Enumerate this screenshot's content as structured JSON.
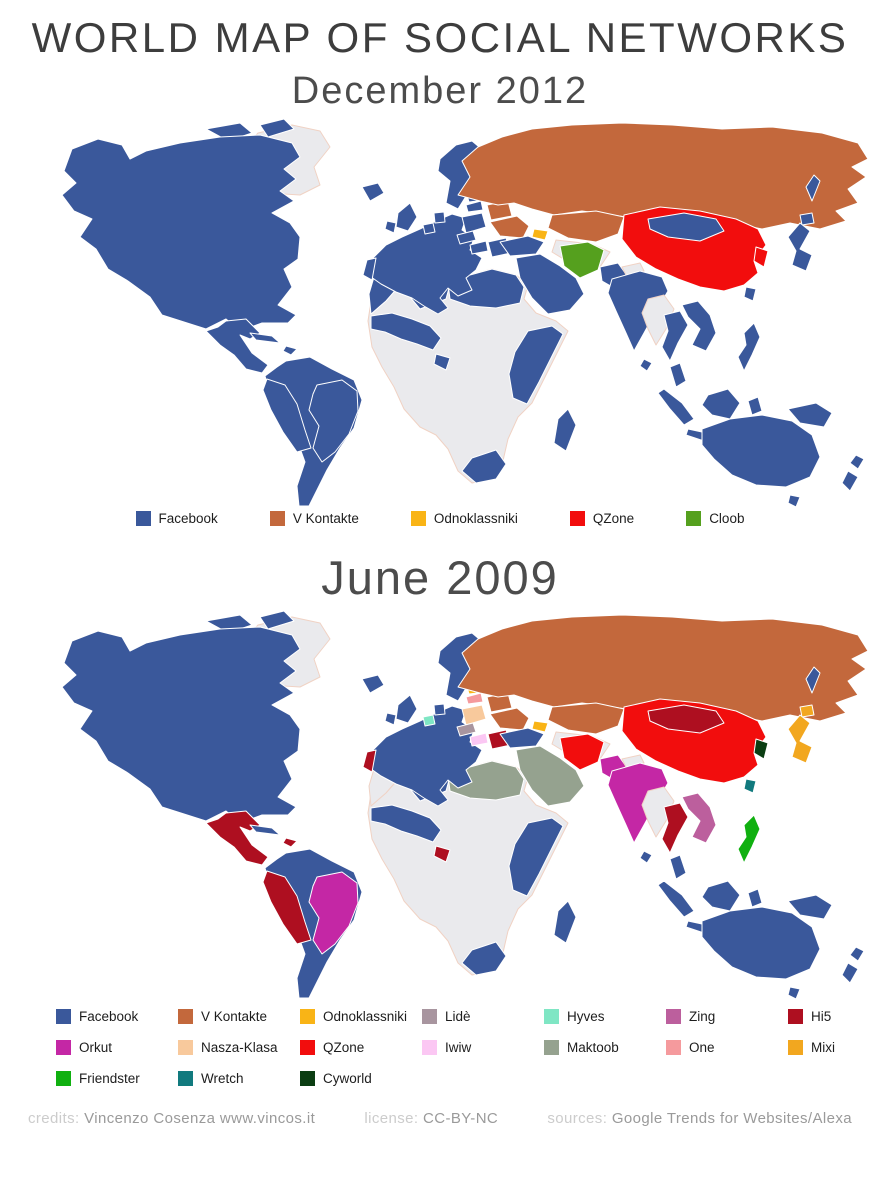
{
  "title": "WORLD MAP OF SOCIAL NETWORKS",
  "palette": {
    "facebook": "#3a589b",
    "vkontakte": "#c3683c",
    "odnoklassniki": "#f9b416",
    "qzone": "#f20d0d",
    "cloob": "#55a01e",
    "lide": "#a8959f",
    "hyves": "#7fe6c4",
    "zing": "#bc5f9d",
    "hi5": "#ae0f20",
    "orkut": "#c427a5",
    "nasza_klasa": "#f8c99c",
    "iwiw": "#fbc7f3",
    "maktoob": "#95a28f",
    "one": "#f59a9d",
    "mixi": "#f2a71f",
    "friendster": "#10b010",
    "wretch": "#117a7e",
    "cyworld": "#0b3d12",
    "nodata": "#eaeaed",
    "ocean": "#ffffff"
  },
  "maps": [
    {
      "subtitle": "December 2012",
      "legend": [
        {
          "label": "Facebook",
          "color_key": "facebook"
        },
        {
          "label": "V Kontakte",
          "color_key": "vkontakte"
        },
        {
          "label": "Odnoklassniki",
          "color_key": "odnoklassniki"
        },
        {
          "label": "QZone",
          "color_key": "qzone"
        },
        {
          "label": "Cloob",
          "color_key": "cloob"
        }
      ],
      "regions": {
        "greenland": "nodata",
        "arctic1": "facebook",
        "arctic2": "facebook",
        "northamerica": "facebook",
        "mexico_ca": "facebook",
        "cuba": "facebook",
        "hispaniola": "facebook",
        "guyanas": "nodata",
        "southamerica": "facebook",
        "brazil": "facebook",
        "andes": "facebook",
        "africa_base": "nodata",
        "madagascar": "facebook",
        "maghreb": "facebook",
        "algeria": "facebook",
        "libya_egypt": "facebook",
        "africa_west": "facebook",
        "cameroon": "facebook",
        "africa_east": "facebook",
        "africa_south": "facebook",
        "europe": "facebook",
        "portugal": "facebook",
        "uk": "facebook",
        "ireland": "facebook",
        "iceland": "facebook",
        "scandinavia": "facebook",
        "finland": "facebook",
        "denmark": "facebook",
        "netherlands": "facebook",
        "poland": "facebook",
        "czech": "facebook",
        "hungary": "facebook",
        "romania": "facebook",
        "lithuania": "facebook",
        "latvia": "facebook",
        "estonia": "facebook",
        "belarus": "vkontakte",
        "ukraine": "vkontakte",
        "russia": "vkontakte",
        "kazakhstan": "vkontakte",
        "centralasia": "nodata",
        "caucasus": "odnoklassniki",
        "turkey": "facebook",
        "middleeast": "facebook",
        "iran": "cloob",
        "pakistan": "facebook",
        "india": "facebook",
        "srilanka": "facebook",
        "china": "qzone",
        "mongolia": "facebook",
        "korea": "qzone",
        "japan": "facebook",
        "hokkaido": "facebook",
        "sakhalin": "facebook",
        "nepal": "nodata",
        "myanmar": "nodata",
        "thailand": "facebook",
        "indochina": "facebook",
        "malaypenin": "facebook",
        "sumatra": "facebook",
        "java": "facebook",
        "borneo": "facebook",
        "sulawesi": "facebook",
        "newguinea": "facebook",
        "philippines": "facebook",
        "taiwan": "facebook",
        "australia": "facebook",
        "tasmania": "facebook",
        "newzealand": "facebook",
        "nz_north": "facebook"
      }
    },
    {
      "subtitle": "June 2009",
      "legend": [
        {
          "label": "Facebook",
          "color_key": "facebook"
        },
        {
          "label": "V Kontakte",
          "color_key": "vkontakte"
        },
        {
          "label": "Odnoklassniki",
          "color_key": "odnoklassniki"
        },
        {
          "label": "Lidè",
          "color_key": "lide"
        },
        {
          "label": "Hyves",
          "color_key": "hyves"
        },
        {
          "label": "Zing",
          "color_key": "zing"
        },
        {
          "label": "Hi5",
          "color_key": "hi5"
        },
        {
          "label": "Orkut",
          "color_key": "orkut"
        },
        {
          "label": "Nasza-Klasa",
          "color_key": "nasza_klasa"
        },
        {
          "label": "QZone",
          "color_key": "qzone"
        },
        {
          "label": "Iwiw",
          "color_key": "iwiw"
        },
        {
          "label": "Maktoob",
          "color_key": "maktoob"
        },
        {
          "label": "One",
          "color_key": "one"
        },
        {
          "label": "Mixi",
          "color_key": "mixi"
        },
        {
          "label": "Friendster",
          "color_key": "friendster"
        },
        {
          "label": "Wretch",
          "color_key": "wretch"
        },
        {
          "label": "Cyworld",
          "color_key": "cyworld"
        }
      ],
      "regions": {
        "greenland": "nodata",
        "arctic1": "facebook",
        "arctic2": "facebook",
        "northamerica": "facebook",
        "mexico_ca": "hi5",
        "cuba": "facebook",
        "hispaniola": "hi5",
        "guyanas": "nodata",
        "southamerica": "facebook",
        "brazil": "orkut",
        "andes": "hi5",
        "africa_base": "nodata",
        "madagascar": "facebook",
        "maghreb": "nodata",
        "algeria": "facebook",
        "libya_egypt": "maktoob",
        "africa_west": "facebook",
        "cameroon": "hi5",
        "africa_east": "facebook",
        "africa_south": "facebook",
        "europe": "facebook",
        "portugal": "hi5",
        "uk": "facebook",
        "ireland": "facebook",
        "iceland": "facebook",
        "scandinavia": "facebook",
        "finland": "facebook",
        "denmark": "facebook",
        "netherlands": "hyves",
        "poland": "nasza_klasa",
        "czech": "lide",
        "hungary": "iwiw",
        "romania": "hi5",
        "lithuania": "one",
        "latvia": "odnoklassniki",
        "estonia": "orkut",
        "belarus": "vkontakte",
        "ukraine": "vkontakte",
        "russia": "vkontakte",
        "kazakhstan": "vkontakte",
        "centralasia": "nodata",
        "caucasus": "odnoklassniki",
        "turkey": "facebook",
        "middleeast": "maktoob",
        "iran": "qzone",
        "pakistan": "orkut",
        "india": "orkut",
        "srilanka": "facebook",
        "china": "qzone",
        "mongolia": "hi5",
        "korea": "cyworld",
        "japan": "mixi",
        "hokkaido": "mixi",
        "sakhalin": "facebook",
        "nepal": "nodata",
        "myanmar": "nodata",
        "thailand": "hi5",
        "indochina": "zing",
        "malaypenin": "facebook",
        "sumatra": "facebook",
        "java": "facebook",
        "borneo": "facebook",
        "sulawesi": "facebook",
        "newguinea": "facebook",
        "philippines": "friendster",
        "taiwan": "wretch",
        "australia": "facebook",
        "tasmania": "facebook",
        "newzealand": "facebook",
        "nz_north": "facebook"
      }
    }
  ],
  "footer": {
    "credits_label": "credits:",
    "credits_value": "Vincenzo Cosenza  www.vincos.it",
    "license_label": "license:",
    "license_value": "CC-BY-NC",
    "sources_label": "sources:",
    "sources_value": "Google Trends for Websites/Alexa"
  }
}
